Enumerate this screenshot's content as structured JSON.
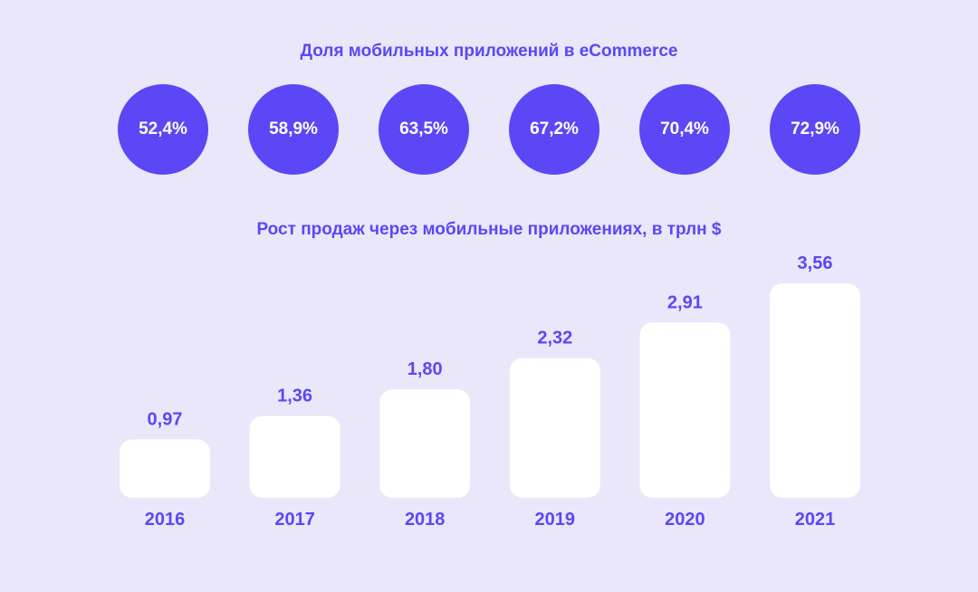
{
  "share_section": {
    "title": "Доля мобильных приложений в eCommerce",
    "circle_color": "#5b47f5",
    "values": [
      "52,4%",
      "58,9%",
      "63,5%",
      "67,2%",
      "70,4%",
      "72,9%"
    ]
  },
  "sales_section": {
    "title": "Рост продаж через мобильные приложениях, в трлн $"
  },
  "colors": {
    "background": "#e9e7f9",
    "accent": "#5b47f5",
    "bar": "#ffffff"
  },
  "chart_data": [
    {
      "type": "bubble-row",
      "title": "Доля мобильных приложений в eCommerce",
      "categories": [
        "2016",
        "2017",
        "2018",
        "2019",
        "2020",
        "2021"
      ],
      "values": [
        52.4,
        58.9,
        63.5,
        67.2,
        70.4,
        72.9
      ],
      "value_labels": [
        "52,4%",
        "58,9%",
        "63,5%",
        "67,2%",
        "70,4%",
        "72,9%"
      ],
      "unit": "%"
    },
    {
      "type": "bar",
      "title": "Рост продаж через мобильные приложениях, в трлн $",
      "categories": [
        "2016",
        "2017",
        "2018",
        "2019",
        "2020",
        "2021"
      ],
      "values": [
        0.97,
        1.36,
        1.8,
        2.32,
        2.91,
        3.56
      ],
      "value_labels": [
        "0,97",
        "1,36",
        "1,80",
        "2,32",
        "2,91",
        "3,56"
      ],
      "ylim": [
        0,
        3.56
      ],
      "grid": false,
      "legend": "none"
    }
  ]
}
